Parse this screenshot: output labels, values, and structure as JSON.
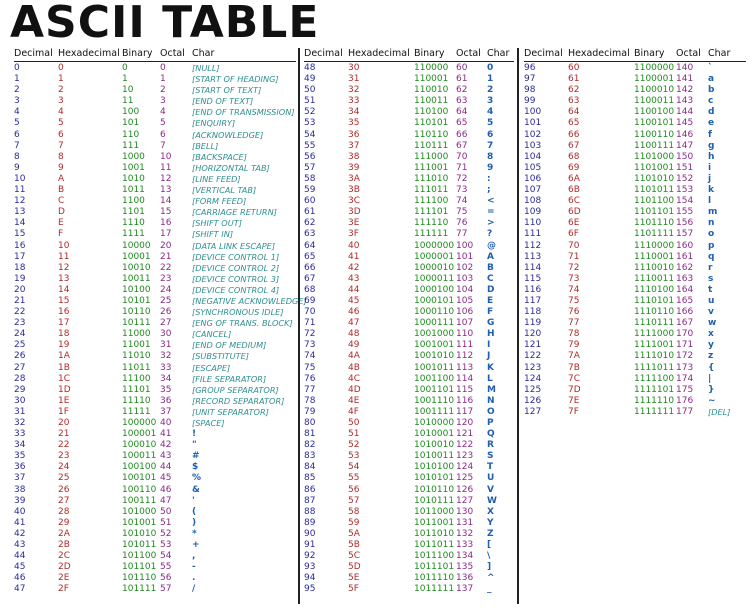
{
  "title": "ASCII TABLE",
  "headers": {
    "decimal": "Decimal",
    "hex": "Hexadecimal",
    "binary": "Binary",
    "octal": "Octal",
    "char": "Char"
  },
  "colors": {
    "decimal": "#2b2b9a",
    "hex": "#b02a2a",
    "binary": "#1e8a1e",
    "octal": "#8a2a8a",
    "char": "#1f5fb0",
    "control": "#2f8f8f"
  },
  "columns": [
    {
      "rows": [
        {
          "dec": "0",
          "hex": "0",
          "bin": "0",
          "oct": "0",
          "char": "[NULL]"
        },
        {
          "dec": "1",
          "hex": "1",
          "bin": "1",
          "oct": "1",
          "char": "[START OF HEADING]"
        },
        {
          "dec": "2",
          "hex": "2",
          "bin": "10",
          "oct": "2",
          "char": "[START OF TEXT]"
        },
        {
          "dec": "3",
          "hex": "3",
          "bin": "11",
          "oct": "3",
          "char": "[END OF TEXT]"
        },
        {
          "dec": "4",
          "hex": "4",
          "bin": "100",
          "oct": "4",
          "char": "[END OF TRANSMISSION]"
        },
        {
          "dec": "5",
          "hex": "5",
          "bin": "101",
          "oct": "5",
          "char": "[ENQUIRY]"
        },
        {
          "dec": "6",
          "hex": "6",
          "bin": "110",
          "oct": "6",
          "char": "[ACKNOWLEDGE]"
        },
        {
          "dec": "7",
          "hex": "7",
          "bin": "111",
          "oct": "7",
          "char": "[BELL]"
        },
        {
          "dec": "8",
          "hex": "8",
          "bin": "1000",
          "oct": "10",
          "char": "[BACKSPACE]"
        },
        {
          "dec": "9",
          "hex": "9",
          "bin": "1001",
          "oct": "11",
          "char": "[HORIZONTAL TAB]"
        },
        {
          "dec": "10",
          "hex": "A",
          "bin": "1010",
          "oct": "12",
          "char": "[LINE FEED]"
        },
        {
          "dec": "11",
          "hex": "B",
          "bin": "1011",
          "oct": "13",
          "char": "[VERTICAL TAB]"
        },
        {
          "dec": "12",
          "hex": "C",
          "bin": "1100",
          "oct": "14",
          "char": "[FORM FEED]"
        },
        {
          "dec": "13",
          "hex": "D",
          "bin": "1101",
          "oct": "15",
          "char": "[CARRIAGE RETURN]"
        },
        {
          "dec": "14",
          "hex": "E",
          "bin": "1110",
          "oct": "16",
          "char": "[SHIFT OUT]"
        },
        {
          "dec": "15",
          "hex": "F",
          "bin": "1111",
          "oct": "17",
          "char": "[SHIFT IN]"
        },
        {
          "dec": "16",
          "hex": "10",
          "bin": "10000",
          "oct": "20",
          "char": "[DATA LINK ESCAPE]"
        },
        {
          "dec": "17",
          "hex": "11",
          "bin": "10001",
          "oct": "21",
          "char": "[DEVICE CONTROL 1]"
        },
        {
          "dec": "18",
          "hex": "12",
          "bin": "10010",
          "oct": "22",
          "char": "[DEVICE CONTROL 2]"
        },
        {
          "dec": "19",
          "hex": "13",
          "bin": "10011",
          "oct": "23",
          "char": "[DEVICE CONTROL 3]"
        },
        {
          "dec": "20",
          "hex": "14",
          "bin": "10100",
          "oct": "24",
          "char": "[DEVICE CONTROL 4]"
        },
        {
          "dec": "21",
          "hex": "15",
          "bin": "10101",
          "oct": "25",
          "char": "[NEGATIVE ACKNOWLEDGE]"
        },
        {
          "dec": "22",
          "hex": "16",
          "bin": "10110",
          "oct": "26",
          "char": "[SYNCHRONOUS IDLE]"
        },
        {
          "dec": "23",
          "hex": "17",
          "bin": "10111",
          "oct": "27",
          "char": "[ENG OF TRANS. BLOCK]"
        },
        {
          "dec": "24",
          "hex": "18",
          "bin": "11000",
          "oct": "30",
          "char": "[CANCEL]"
        },
        {
          "dec": "25",
          "hex": "19",
          "bin": "11001",
          "oct": "31",
          "char": "[END OF MEDIUM]"
        },
        {
          "dec": "26",
          "hex": "1A",
          "bin": "11010",
          "oct": "32",
          "char": "[SUBSTITUTE]"
        },
        {
          "dec": "27",
          "hex": "1B",
          "bin": "11011",
          "oct": "33",
          "char": "[ESCAPE]"
        },
        {
          "dec": "28",
          "hex": "1C",
          "bin": "11100",
          "oct": "34",
          "char": "[FILE SEPARATOR]"
        },
        {
          "dec": "29",
          "hex": "1D",
          "bin": "11101",
          "oct": "35",
          "char": "[GROUP SEPARATOR]"
        },
        {
          "dec": "30",
          "hex": "1E",
          "bin": "11110",
          "oct": "36",
          "char": "[RECORD SEPARATOR]"
        },
        {
          "dec": "31",
          "hex": "1F",
          "bin": "11111",
          "oct": "37",
          "char": "[UNIT SEPARATOR]"
        },
        {
          "dec": "32",
          "hex": "20",
          "bin": "100000",
          "oct": "40",
          "char": "[SPACE]"
        },
        {
          "dec": "33",
          "hex": "21",
          "bin": "100001",
          "oct": "41",
          "char": "!"
        },
        {
          "dec": "34",
          "hex": "22",
          "bin": "100010",
          "oct": "42",
          "char": "\""
        },
        {
          "dec": "35",
          "hex": "23",
          "bin": "100011",
          "oct": "43",
          "char": "#"
        },
        {
          "dec": "36",
          "hex": "24",
          "bin": "100100",
          "oct": "44",
          "char": "$"
        },
        {
          "dec": "37",
          "hex": "25",
          "bin": "100101",
          "oct": "45",
          "char": "%"
        },
        {
          "dec": "38",
          "hex": "26",
          "bin": "100110",
          "oct": "46",
          "char": "&"
        },
        {
          "dec": "39",
          "hex": "27",
          "bin": "100111",
          "oct": "47",
          "char": "'"
        },
        {
          "dec": "40",
          "hex": "28",
          "bin": "101000",
          "oct": "50",
          "char": "("
        },
        {
          "dec": "41",
          "hex": "29",
          "bin": "101001",
          "oct": "51",
          "char": ")"
        },
        {
          "dec": "42",
          "hex": "2A",
          "bin": "101010",
          "oct": "52",
          "char": "*"
        },
        {
          "dec": "43",
          "hex": "2B",
          "bin": "101011",
          "oct": "53",
          "char": "+"
        },
        {
          "dec": "44",
          "hex": "2C",
          "bin": "101100",
          "oct": "54",
          "char": ","
        },
        {
          "dec": "45",
          "hex": "2D",
          "bin": "101101",
          "oct": "55",
          "char": "-"
        },
        {
          "dec": "46",
          "hex": "2E",
          "bin": "101110",
          "oct": "56",
          "char": "."
        },
        {
          "dec": "47",
          "hex": "2F",
          "bin": "101111",
          "oct": "57",
          "char": "/"
        }
      ]
    },
    {
      "rows": [
        {
          "dec": "48",
          "hex": "30",
          "bin": "110000",
          "oct": "60",
          "char": "0"
        },
        {
          "dec": "49",
          "hex": "31",
          "bin": "110001",
          "oct": "61",
          "char": "1"
        },
        {
          "dec": "50",
          "hex": "32",
          "bin": "110010",
          "oct": "62",
          "char": "2"
        },
        {
          "dec": "51",
          "hex": "33",
          "bin": "110011",
          "oct": "63",
          "char": "3"
        },
        {
          "dec": "52",
          "hex": "34",
          "bin": "110100",
          "oct": "64",
          "char": "4"
        },
        {
          "dec": "53",
          "hex": "35",
          "bin": "110101",
          "oct": "65",
          "char": "5"
        },
        {
          "dec": "54",
          "hex": "36",
          "bin": "110110",
          "oct": "66",
          "char": "6"
        },
        {
          "dec": "55",
          "hex": "37",
          "bin": "110111",
          "oct": "67",
          "char": "7"
        },
        {
          "dec": "56",
          "hex": "38",
          "bin": "111000",
          "oct": "70",
          "char": "8"
        },
        {
          "dec": "57",
          "hex": "39",
          "bin": "111001",
          "oct": "71",
          "char": "9"
        },
        {
          "dec": "58",
          "hex": "3A",
          "bin": "111010",
          "oct": "72",
          "char": ":"
        },
        {
          "dec": "59",
          "hex": "3B",
          "bin": "111011",
          "oct": "73",
          "char": ";"
        },
        {
          "dec": "60",
          "hex": "3C",
          "bin": "111100",
          "oct": "74",
          "char": "<"
        },
        {
          "dec": "61",
          "hex": "3D",
          "bin": "111101",
          "oct": "75",
          "char": "="
        },
        {
          "dec": "62",
          "hex": "3E",
          "bin": "111110",
          "oct": "76",
          "char": ">"
        },
        {
          "dec": "63",
          "hex": "3F",
          "bin": "111111",
          "oct": "77",
          "char": "?"
        },
        {
          "dec": "64",
          "hex": "40",
          "bin": "1000000",
          "oct": "100",
          "char": "@"
        },
        {
          "dec": "65",
          "hex": "41",
          "bin": "1000001",
          "oct": "101",
          "char": "A"
        },
        {
          "dec": "66",
          "hex": "42",
          "bin": "1000010",
          "oct": "102",
          "char": "B"
        },
        {
          "dec": "67",
          "hex": "43",
          "bin": "1000011",
          "oct": "103",
          "char": "C"
        },
        {
          "dec": "68",
          "hex": "44",
          "bin": "1000100",
          "oct": "104",
          "char": "D"
        },
        {
          "dec": "69",
          "hex": "45",
          "bin": "1000101",
          "oct": "105",
          "char": "E"
        },
        {
          "dec": "70",
          "hex": "46",
          "bin": "1000110",
          "oct": "106",
          "char": "F"
        },
        {
          "dec": "71",
          "hex": "47",
          "bin": "1000111",
          "oct": "107",
          "char": "G"
        },
        {
          "dec": "72",
          "hex": "48",
          "bin": "1001000",
          "oct": "110",
          "char": "H"
        },
        {
          "dec": "73",
          "hex": "49",
          "bin": "1001001",
          "oct": "111",
          "char": "I"
        },
        {
          "dec": "74",
          "hex": "4A",
          "bin": "1001010",
          "oct": "112",
          "char": "J"
        },
        {
          "dec": "75",
          "hex": "4B",
          "bin": "1001011",
          "oct": "113",
          "char": "K"
        },
        {
          "dec": "76",
          "hex": "4C",
          "bin": "1001100",
          "oct": "114",
          "char": "L"
        },
        {
          "dec": "77",
          "hex": "4D",
          "bin": "1001101",
          "oct": "115",
          "char": "M"
        },
        {
          "dec": "78",
          "hex": "4E",
          "bin": "1001110",
          "oct": "116",
          "char": "N"
        },
        {
          "dec": "79",
          "hex": "4F",
          "bin": "1001111",
          "oct": "117",
          "char": "O"
        },
        {
          "dec": "80",
          "hex": "50",
          "bin": "1010000",
          "oct": "120",
          "char": "P"
        },
        {
          "dec": "81",
          "hex": "51",
          "bin": "1010001",
          "oct": "121",
          "char": "Q"
        },
        {
          "dec": "82",
          "hex": "52",
          "bin": "1010010",
          "oct": "122",
          "char": "R"
        },
        {
          "dec": "83",
          "hex": "53",
          "bin": "1010011",
          "oct": "123",
          "char": "S"
        },
        {
          "dec": "84",
          "hex": "54",
          "bin": "1010100",
          "oct": "124",
          "char": "T"
        },
        {
          "dec": "85",
          "hex": "55",
          "bin": "1010101",
          "oct": "125",
          "char": "U"
        },
        {
          "dec": "86",
          "hex": "56",
          "bin": "1010110",
          "oct": "126",
          "char": "V"
        },
        {
          "dec": "87",
          "hex": "57",
          "bin": "1010111",
          "oct": "127",
          "char": "W"
        },
        {
          "dec": "88",
          "hex": "58",
          "bin": "1011000",
          "oct": "130",
          "char": "X"
        },
        {
          "dec": "89",
          "hex": "59",
          "bin": "1011001",
          "oct": "131",
          "char": "Y"
        },
        {
          "dec": "90",
          "hex": "5A",
          "bin": "1011010",
          "oct": "132",
          "char": "Z"
        },
        {
          "dec": "91",
          "hex": "5B",
          "bin": "1011011",
          "oct": "133",
          "char": "["
        },
        {
          "dec": "92",
          "hex": "5C",
          "bin": "1011100",
          "oct": "134",
          "char": "\\"
        },
        {
          "dec": "93",
          "hex": "5D",
          "bin": "1011101",
          "oct": "135",
          "char": "]"
        },
        {
          "dec": "94",
          "hex": "5E",
          "bin": "1011110",
          "oct": "136",
          "char": "^"
        },
        {
          "dec": "95",
          "hex": "5F",
          "bin": "1011111",
          "oct": "137",
          "char": "_"
        }
      ]
    },
    {
      "rows": [
        {
          "dec": "96",
          "hex": "60",
          "bin": "1100000",
          "oct": "140",
          "char": "`"
        },
        {
          "dec": "97",
          "hex": "61",
          "bin": "1100001",
          "oct": "141",
          "char": "a"
        },
        {
          "dec": "98",
          "hex": "62",
          "bin": "1100010",
          "oct": "142",
          "char": "b"
        },
        {
          "dec": "99",
          "hex": "63",
          "bin": "1100011",
          "oct": "143",
          "char": "c"
        },
        {
          "dec": "100",
          "hex": "64",
          "bin": "1100100",
          "oct": "144",
          "char": "d"
        },
        {
          "dec": "101",
          "hex": "65",
          "bin": "1100101",
          "oct": "145",
          "char": "e"
        },
        {
          "dec": "102",
          "hex": "66",
          "bin": "1100110",
          "oct": "146",
          "char": "f"
        },
        {
          "dec": "103",
          "hex": "67",
          "bin": "1100111",
          "oct": "147",
          "char": "g"
        },
        {
          "dec": "104",
          "hex": "68",
          "bin": "1101000",
          "oct": "150",
          "char": "h"
        },
        {
          "dec": "105",
          "hex": "69",
          "bin": "1101001",
          "oct": "151",
          "char": "i"
        },
        {
          "dec": "106",
          "hex": "6A",
          "bin": "1101010",
          "oct": "152",
          "char": "j"
        },
        {
          "dec": "107",
          "hex": "6B",
          "bin": "1101011",
          "oct": "153",
          "char": "k"
        },
        {
          "dec": "108",
          "hex": "6C",
          "bin": "1101100",
          "oct": "154",
          "char": "l"
        },
        {
          "dec": "109",
          "hex": "6D",
          "bin": "1101101",
          "oct": "155",
          "char": "m"
        },
        {
          "dec": "110",
          "hex": "6E",
          "bin": "1101110",
          "oct": "156",
          "char": "n"
        },
        {
          "dec": "111",
          "hex": "6F",
          "bin": "1101111",
          "oct": "157",
          "char": "o"
        },
        {
          "dec": "112",
          "hex": "70",
          "bin": "1110000",
          "oct": "160",
          "char": "p"
        },
        {
          "dec": "113",
          "hex": "71",
          "bin": "1110001",
          "oct": "161",
          "char": "q"
        },
        {
          "dec": "114",
          "hex": "72",
          "bin": "1110010",
          "oct": "162",
          "char": "r"
        },
        {
          "dec": "115",
          "hex": "73",
          "bin": "1110011",
          "oct": "163",
          "char": "s"
        },
        {
          "dec": "116",
          "hex": "74",
          "bin": "1110100",
          "oct": "164",
          "char": "t"
        },
        {
          "dec": "117",
          "hex": "75",
          "bin": "1110101",
          "oct": "165",
          "char": "u"
        },
        {
          "dec": "118",
          "hex": "76",
          "bin": "1110110",
          "oct": "166",
          "char": "v"
        },
        {
          "dec": "119",
          "hex": "77",
          "bin": "1110111",
          "oct": "167",
          "char": "w"
        },
        {
          "dec": "120",
          "hex": "78",
          "bin": "1111000",
          "oct": "170",
          "char": "x"
        },
        {
          "dec": "121",
          "hex": "79",
          "bin": "1111001",
          "oct": "171",
          "char": "y"
        },
        {
          "dec": "122",
          "hex": "7A",
          "bin": "1111010",
          "oct": "172",
          "char": "z"
        },
        {
          "dec": "123",
          "hex": "7B",
          "bin": "1111011",
          "oct": "173",
          "char": "{"
        },
        {
          "dec": "124",
          "hex": "7C",
          "bin": "1111100",
          "oct": "174",
          "char": "|"
        },
        {
          "dec": "125",
          "hex": "7D",
          "bin": "1111101",
          "oct": "175",
          "char": "}"
        },
        {
          "dec": "126",
          "hex": "7E",
          "bin": "1111110",
          "oct": "176",
          "char": "~"
        },
        {
          "dec": "127",
          "hex": "7F",
          "bin": "1111111",
          "oct": "177",
          "char": "[DEL]"
        }
      ]
    }
  ]
}
